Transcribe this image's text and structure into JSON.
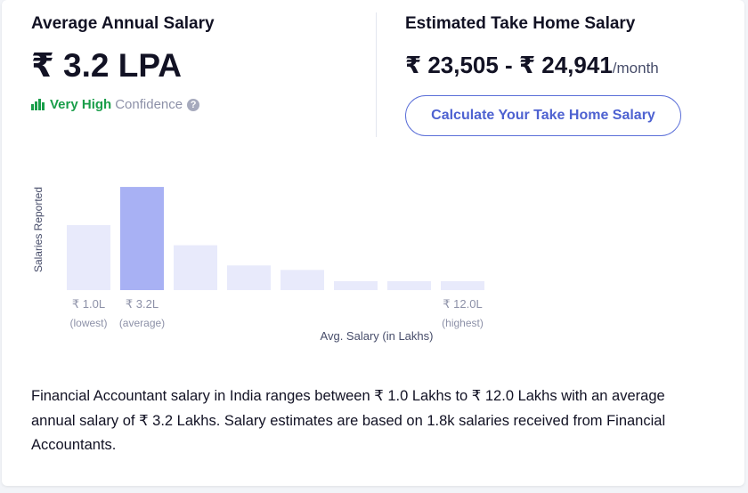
{
  "average": {
    "title": "Average Annual Salary",
    "value": "₹ 3.2 LPA",
    "confidence_level": "Very High",
    "confidence_label": "Confidence",
    "help_glyph": "?"
  },
  "take_home": {
    "title": "Estimated Take Home Salary",
    "value": "₹ 23,505 - ₹ 24,941",
    "unit": "/month",
    "button_label": "Calculate Your Take Home Salary"
  },
  "chart_data": {
    "type": "bar",
    "ylabel": "Salaries Reported",
    "xlabel": "Avg. Salary (in Lakhs)",
    "values": [
      0.58,
      0.92,
      0.4,
      0.22,
      0.18,
      0.08,
      0.08,
      0.08
    ],
    "highlight_index": 1,
    "tick_labels": [
      {
        "index": 0,
        "value": "₹ 1.0L",
        "caption": "(lowest)"
      },
      {
        "index": 1,
        "value": "₹ 3.2L",
        "caption": "(average)"
      },
      {
        "index": 7,
        "value": "₹ 12.0L",
        "caption": "(highest)"
      }
    ],
    "colors": {
      "bar": "#e8eafb",
      "highlight": "#a8b1f4"
    }
  },
  "description": "Financial Accountant salary in India ranges between ₹ 1.0 Lakhs to ₹ 12.0 Lakhs with an average annual salary of ₹ 3.2 Lakhs. Salary estimates are based on 1.8k salaries received from Financial Accountants.",
  "icons": {
    "confidence": "bar-chart-icon",
    "help": "question-circle-icon"
  }
}
